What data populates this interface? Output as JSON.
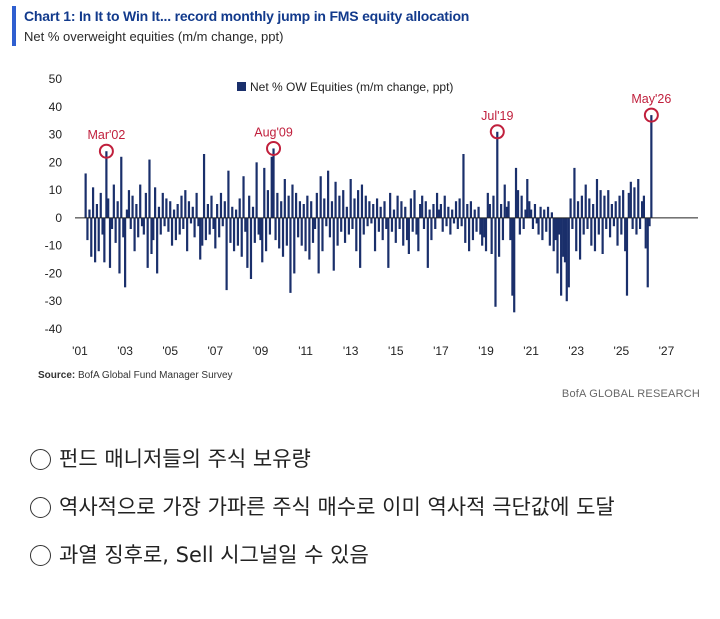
{
  "header": {
    "title": "Chart 1: In It to Win It... record monthly jump in FMS equity allocation",
    "subtitle": "Net % overweight equities (m/m change, ppt)"
  },
  "footer": {
    "source_label": "Source:",
    "source_text": "BofA Global Fund Manager Survey",
    "brand": "BofA GLOBAL RESEARCH"
  },
  "notes": [
    "펀드 매니저들의 주식 보유량",
    "역사적으로 가장 가파른 주식 매수로 이미 역사적 극단값에 도달",
    "과열 징후로, Sell 시그널일 수 있음"
  ],
  "colors": {
    "bars": "#1a2f6b",
    "highlight": "#c01f3c",
    "accent": "#2f5fd0"
  },
  "chart_data": {
    "type": "bar",
    "series": [
      {
        "name": "Net % OW Equities (m/m change, ppt)"
      }
    ],
    "ylim": [
      -40,
      50
    ],
    "yticks": [
      50,
      40,
      30,
      20,
      10,
      0,
      -10,
      -20,
      -30,
      -40
    ],
    "xlim": [
      2001.0,
      2027.6
    ],
    "xticks": [
      {
        "label": "'01",
        "x": 2001.0
      },
      {
        "label": "'03",
        "x": 2003.0
      },
      {
        "label": "'05",
        "x": 2005.0
      },
      {
        "label": "'07",
        "x": 2007.0
      },
      {
        "label": "'09",
        "x": 2009.0
      },
      {
        "label": "'11",
        "x": 2011.0
      },
      {
        "label": "'13",
        "x": 2013.0
      },
      {
        "label": "'15",
        "x": 2015.0
      },
      {
        "label": "'17",
        "x": 2017.0
      },
      {
        "label": "'19",
        "x": 2019.0
      },
      {
        "label": "'21",
        "x": 2021.0
      },
      {
        "label": "'23",
        "x": 2023.0
      },
      {
        "label": "'25",
        "x": 2025.0
      },
      {
        "label": "'27",
        "x": 2027.0
      }
    ],
    "grid": false,
    "legend": "top-center",
    "annotations": [
      {
        "label": "Mar'02",
        "x": 2002.17,
        "y": 24
      },
      {
        "label": "Aug'09",
        "x": 2009.58,
        "y": 25
      },
      {
        "label": "Jul'19",
        "x": 2019.5,
        "y": 31
      },
      {
        "label": "May'26",
        "x": 2026.33,
        "y": 37
      }
    ],
    "points": [
      [
        2001.25,
        16
      ],
      [
        2001.33,
        -8
      ],
      [
        2001.42,
        3
      ],
      [
        2001.5,
        -14
      ],
      [
        2001.58,
        11
      ],
      [
        2001.67,
        -16
      ],
      [
        2001.75,
        5
      ],
      [
        2001.83,
        -12
      ],
      [
        2001.92,
        9
      ],
      [
        2002.0,
        -6
      ],
      [
        2002.08,
        -16
      ],
      [
        2002.17,
        24
      ],
      [
        2002.25,
        7
      ],
      [
        2002.33,
        -18
      ],
      [
        2002.42,
        -4
      ],
      [
        2002.5,
        12
      ],
      [
        2002.58,
        -9
      ],
      [
        2002.67,
        6
      ],
      [
        2002.75,
        -20
      ],
      [
        2002.83,
        22
      ],
      [
        2002.92,
        -7
      ],
      [
        2003.0,
        -25
      ],
      [
        2003.08,
        3
      ],
      [
        2003.17,
        10
      ],
      [
        2003.25,
        -4
      ],
      [
        2003.33,
        8
      ],
      [
        2003.42,
        -12
      ],
      [
        2003.5,
        5
      ],
      [
        2003.58,
        -7
      ],
      [
        2003.67,
        12
      ],
      [
        2003.75,
        -3
      ],
      [
        2003.83,
        -6
      ],
      [
        2003.92,
        9
      ],
      [
        2004.0,
        -18
      ],
      [
        2004.08,
        21
      ],
      [
        2004.17,
        -13
      ],
      [
        2004.25,
        -8
      ],
      [
        2004.33,
        11
      ],
      [
        2004.42,
        -20
      ],
      [
        2004.5,
        4
      ],
      [
        2004.58,
        -6
      ],
      [
        2004.67,
        9
      ],
      [
        2004.75,
        -3
      ],
      [
        2004.83,
        7
      ],
      [
        2004.92,
        -5
      ],
      [
        2005.0,
        6
      ],
      [
        2005.08,
        -10
      ],
      [
        2005.17,
        3
      ],
      [
        2005.25,
        -8
      ],
      [
        2005.33,
        5
      ],
      [
        2005.42,
        -6
      ],
      [
        2005.5,
        8
      ],
      [
        2005.58,
        -4
      ],
      [
        2005.67,
        10
      ],
      [
        2005.75,
        -12
      ],
      [
        2005.83,
        6
      ],
      [
        2005.92,
        -2
      ],
      [
        2006.0,
        4
      ],
      [
        2006.08,
        -7
      ],
      [
        2006.17,
        9
      ],
      [
        2006.25,
        -3
      ],
      [
        2006.33,
        -15
      ],
      [
        2006.42,
        -10
      ],
      [
        2006.5,
        23
      ],
      [
        2006.58,
        -8
      ],
      [
        2006.67,
        5
      ],
      [
        2006.75,
        -6
      ],
      [
        2006.83,
        8
      ],
      [
        2006.92,
        -4
      ],
      [
        2007.0,
        -11
      ],
      [
        2007.08,
        5
      ],
      [
        2007.17,
        -7
      ],
      [
        2007.25,
        9
      ],
      [
        2007.33,
        -3
      ],
      [
        2007.42,
        6
      ],
      [
        2007.5,
        -26
      ],
      [
        2007.58,
        17
      ],
      [
        2007.67,
        -9
      ],
      [
        2007.75,
        4
      ],
      [
        2007.83,
        -12
      ],
      [
        2007.92,
        3
      ],
      [
        2008.0,
        -10
      ],
      [
        2008.08,
        7
      ],
      [
        2008.17,
        -14
      ],
      [
        2008.25,
        15
      ],
      [
        2008.33,
        -5
      ],
      [
        2008.42,
        -18
      ],
      [
        2008.5,
        8
      ],
      [
        2008.58,
        -22
      ],
      [
        2008.67,
        4
      ],
      [
        2008.75,
        -9
      ],
      [
        2008.83,
        20
      ],
      [
        2008.92,
        -6
      ],
      [
        2009.0,
        -8
      ],
      [
        2009.08,
        -16
      ],
      [
        2009.17,
        18
      ],
      [
        2009.25,
        -12
      ],
      [
        2009.33,
        10
      ],
      [
        2009.42,
        -6
      ],
      [
        2009.5,
        22
      ],
      [
        2009.58,
        25
      ],
      [
        2009.67,
        -8
      ],
      [
        2009.75,
        9
      ],
      [
        2009.83,
        -11
      ],
      [
        2009.92,
        6
      ],
      [
        2010.0,
        -14
      ],
      [
        2010.08,
        14
      ],
      [
        2010.17,
        -10
      ],
      [
        2010.25,
        8
      ],
      [
        2010.33,
        -27
      ],
      [
        2010.42,
        12
      ],
      [
        2010.5,
        -20
      ],
      [
        2010.58,
        9
      ],
      [
        2010.67,
        -7
      ],
      [
        2010.75,
        6
      ],
      [
        2010.83,
        -10
      ],
      [
        2010.92,
        5
      ],
      [
        2011.0,
        -12
      ],
      [
        2011.08,
        8
      ],
      [
        2011.17,
        -15
      ],
      [
        2011.25,
        6
      ],
      [
        2011.33,
        -9
      ],
      [
        2011.42,
        -4
      ],
      [
        2011.5,
        9
      ],
      [
        2011.58,
        -20
      ],
      [
        2011.67,
        15
      ],
      [
        2011.75,
        -12
      ],
      [
        2011.83,
        7
      ],
      [
        2011.92,
        -3
      ],
      [
        2012.0,
        17
      ],
      [
        2012.08,
        -7
      ],
      [
        2012.17,
        6
      ],
      [
        2012.25,
        -19
      ],
      [
        2012.33,
        13
      ],
      [
        2012.42,
        -10
      ],
      [
        2012.5,
        8
      ],
      [
        2012.58,
        -5
      ],
      [
        2012.67,
        10
      ],
      [
        2012.75,
        -9
      ],
      [
        2012.83,
        4
      ],
      [
        2012.92,
        -6
      ],
      [
        2013.0,
        14
      ],
      [
        2013.08,
        -4
      ],
      [
        2013.17,
        7
      ],
      [
        2013.25,
        -12
      ],
      [
        2013.33,
        10
      ],
      [
        2013.42,
        -18
      ],
      [
        2013.5,
        12
      ],
      [
        2013.58,
        -6
      ],
      [
        2013.67,
        8
      ],
      [
        2013.75,
        -3
      ],
      [
        2013.83,
        6
      ],
      [
        2013.92,
        -2
      ],
      [
        2014.0,
        5
      ],
      [
        2014.08,
        -12
      ],
      [
        2014.17,
        7
      ],
      [
        2014.25,
        -5
      ],
      [
        2014.33,
        4
      ],
      [
        2014.42,
        -8
      ],
      [
        2014.5,
        6
      ],
      [
        2014.58,
        -4
      ],
      [
        2014.67,
        -18
      ],
      [
        2014.75,
        9
      ],
      [
        2014.83,
        -5
      ],
      [
        2014.92,
        3
      ],
      [
        2015.0,
        -9
      ],
      [
        2015.08,
        8
      ],
      [
        2015.17,
        -4
      ],
      [
        2015.25,
        6
      ],
      [
        2015.33,
        -10
      ],
      [
        2015.42,
        4
      ],
      [
        2015.5,
        -8
      ],
      [
        2015.58,
        -13
      ],
      [
        2015.67,
        7
      ],
      [
        2015.75,
        -5
      ],
      [
        2015.83,
        10
      ],
      [
        2015.92,
        -6
      ],
      [
        2016.0,
        -12
      ],
      [
        2016.08,
        5
      ],
      [
        2016.17,
        8
      ],
      [
        2016.25,
        -4
      ],
      [
        2016.33,
        6
      ],
      [
        2016.42,
        -18
      ],
      [
        2016.5,
        3
      ],
      [
        2016.58,
        -8
      ],
      [
        2016.67,
        5
      ],
      [
        2016.75,
        -4
      ],
      [
        2016.83,
        9
      ],
      [
        2016.92,
        3
      ],
      [
        2017.0,
        5
      ],
      [
        2017.08,
        -5
      ],
      [
        2017.17,
        8
      ],
      [
        2017.25,
        -3
      ],
      [
        2017.33,
        4
      ],
      [
        2017.42,
        -6
      ],
      [
        2017.5,
        3
      ],
      [
        2017.58,
        -2
      ],
      [
        2017.67,
        6
      ],
      [
        2017.75,
        -4
      ],
      [
        2017.83,
        7
      ],
      [
        2017.92,
        -3
      ],
      [
        2018.0,
        23
      ],
      [
        2018.08,
        -9
      ],
      [
        2018.17,
        5
      ],
      [
        2018.25,
        -12
      ],
      [
        2018.33,
        6
      ],
      [
        2018.42,
        -8
      ],
      [
        2018.5,
        3
      ],
      [
        2018.58,
        -5
      ],
      [
        2018.67,
        4
      ],
      [
        2018.75,
        -6
      ],
      [
        2018.83,
        -10
      ],
      [
        2018.92,
        -7
      ],
      [
        2019.0,
        -12
      ],
      [
        2019.08,
        9
      ],
      [
        2019.17,
        5
      ],
      [
        2019.25,
        -13
      ],
      [
        2019.33,
        8
      ],
      [
        2019.42,
        -32
      ],
      [
        2019.5,
        31
      ],
      [
        2019.58,
        -14
      ],
      [
        2019.67,
        5
      ],
      [
        2019.75,
        -8
      ],
      [
        2019.83,
        12
      ],
      [
        2019.92,
        4
      ],
      [
        2020.0,
        6
      ],
      [
        2020.08,
        -8
      ],
      [
        2020.17,
        -28
      ],
      [
        2020.25,
        -34
      ],
      [
        2020.33,
        18
      ],
      [
        2020.42,
        10
      ],
      [
        2020.5,
        -6
      ],
      [
        2020.58,
        8
      ],
      [
        2020.67,
        -4
      ],
      [
        2020.75,
        3
      ],
      [
        2020.83,
        14
      ],
      [
        2020.92,
        6
      ],
      [
        2021.0,
        3
      ],
      [
        2021.08,
        -4
      ],
      [
        2021.17,
        5
      ],
      [
        2021.25,
        -2
      ],
      [
        2021.33,
        -6
      ],
      [
        2021.42,
        4
      ],
      [
        2021.5,
        -8
      ],
      [
        2021.58,
        3
      ],
      [
        2021.67,
        -5
      ],
      [
        2021.75,
        4
      ],
      [
        2021.83,
        -10
      ],
      [
        2021.92,
        2
      ],
      [
        2022.0,
        -12
      ],
      [
        2022.08,
        -8
      ],
      [
        2022.17,
        -20
      ],
      [
        2022.25,
        -6
      ],
      [
        2022.33,
        -28
      ],
      [
        2022.42,
        -14
      ],
      [
        2022.5,
        -16
      ],
      [
        2022.58,
        -30
      ],
      [
        2022.67,
        -25
      ],
      [
        2022.75,
        7
      ],
      [
        2022.83,
        -4
      ],
      [
        2022.92,
        18
      ],
      [
        2023.0,
        -12
      ],
      [
        2023.08,
        6
      ],
      [
        2023.17,
        -15
      ],
      [
        2023.25,
        8
      ],
      [
        2023.33,
        -6
      ],
      [
        2023.42,
        12
      ],
      [
        2023.5,
        -4
      ],
      [
        2023.58,
        7
      ],
      [
        2023.67,
        -10
      ],
      [
        2023.75,
        5
      ],
      [
        2023.83,
        -12
      ],
      [
        2023.92,
        14
      ],
      [
        2024.0,
        -6
      ],
      [
        2024.08,
        10
      ],
      [
        2024.17,
        -13
      ],
      [
        2024.25,
        8
      ],
      [
        2024.33,
        -4
      ],
      [
        2024.42,
        10
      ],
      [
        2024.5,
        -7
      ],
      [
        2024.58,
        5
      ],
      [
        2024.67,
        -3
      ],
      [
        2024.75,
        6
      ],
      [
        2024.83,
        -10
      ],
      [
        2024.92,
        8
      ],
      [
        2025.0,
        -6
      ],
      [
        2025.08,
        10
      ],
      [
        2025.17,
        -12
      ],
      [
        2025.25,
        -28
      ],
      [
        2025.33,
        9
      ],
      [
        2025.42,
        13
      ],
      [
        2025.5,
        -4
      ],
      [
        2025.58,
        11
      ],
      [
        2025.67,
        -6
      ],
      [
        2025.75,
        14
      ],
      [
        2025.83,
        -4
      ],
      [
        2025.92,
        6
      ],
      [
        2026.0,
        8
      ],
      [
        2026.08,
        -11
      ],
      [
        2026.17,
        -25
      ],
      [
        2026.25,
        -3
      ],
      [
        2026.33,
        37
      ]
    ]
  }
}
